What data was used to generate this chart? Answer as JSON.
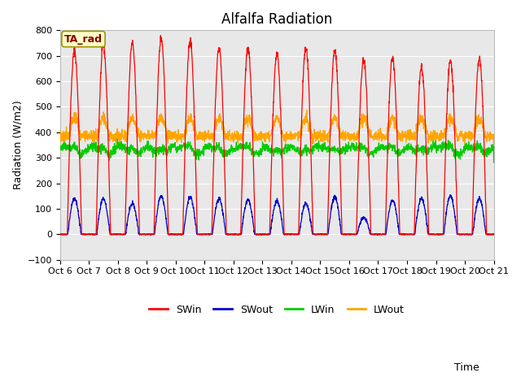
{
  "title": "Alfalfa Radiation",
  "ylabel": "Radiation (W/m2)",
  "xlabel": "Time",
  "ylim": [
    -100,
    800
  ],
  "xlim_days": [
    0,
    15
  ],
  "xtick_labels": [
    "Oct 6",
    "Oct 7",
    "Oct 8",
    "Oct 9",
    "Oct 10",
    "Oct 11",
    "Oct 12",
    "Oct 13",
    "Oct 14",
    "Oct 15",
    "Oct 16",
    "Oct 17",
    "Oct 18",
    "Oct 19",
    "Oct 20",
    "Oct 21"
  ],
  "series_colors": {
    "SWin": "#ff0000",
    "SWout": "#0000cc",
    "LWin": "#00cc00",
    "LWout": "#ffa500"
  },
  "label_box_text": "TA_rad",
  "label_box_bg": "#ffffcc",
  "label_box_edge": "#999900",
  "label_text_color": "#880000",
  "background_color": "#ffffff",
  "plot_bg_color": "#e8e8e8",
  "grid_color": "#ffffff",
  "title_fontsize": 12,
  "axis_label_fontsize": 9,
  "tick_fontsize": 8,
  "legend_fontsize": 9,
  "SWin_peaks": [
    720,
    740,
    750,
    770,
    760,
    730,
    730,
    705,
    730,
    720,
    685,
    690,
    655,
    680,
    690
  ],
  "SWout_peaks": [
    140,
    140,
    120,
    150,
    145,
    140,
    135,
    130,
    120,
    145,
    65,
    135,
    140,
    150,
    140
  ],
  "LWin_base": 330,
  "LWout_base": 385,
  "yticks": [
    -100,
    0,
    100,
    200,
    300,
    400,
    500,
    600,
    700,
    800
  ]
}
